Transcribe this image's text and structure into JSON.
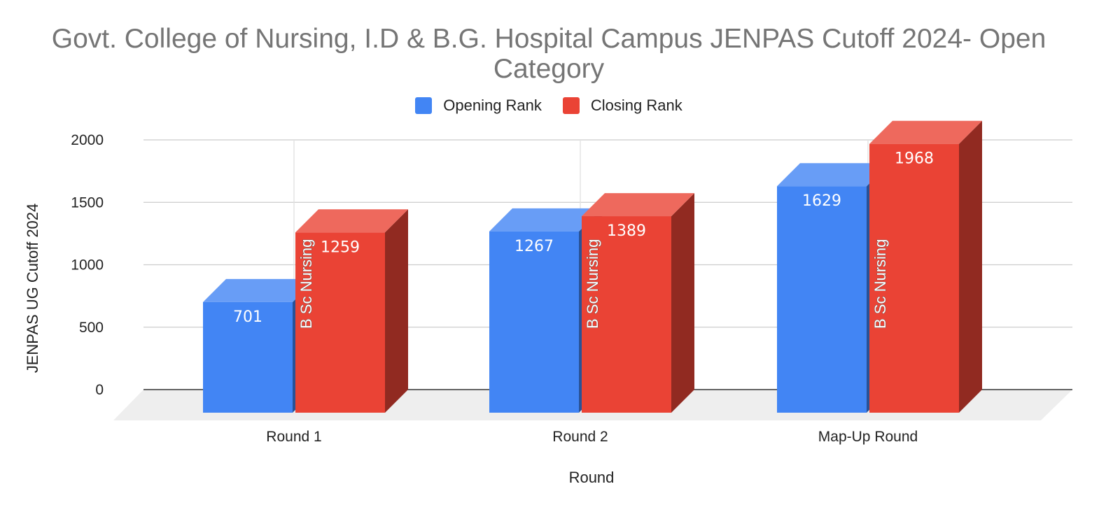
{
  "chart_data": {
    "type": "bar",
    "title_lines": [
      "Govt. College of Nursing, I.D & B.G. Hospital Campus JENPAS Cutoff 2024- Open",
      "Category"
    ],
    "xlabel": "Round",
    "ylabel": "JENPAS UG Cutoff 2024",
    "categories": [
      "Round 1",
      "Round 2",
      "Map-Up Round"
    ],
    "series": [
      {
        "name": "Opening Rank",
        "color": "#4285f4",
        "values": [
          701,
          1267,
          1629
        ]
      },
      {
        "name": "Closing Rank",
        "color": "#ea4335",
        "values": [
          1259,
          1389,
          1968
        ]
      }
    ],
    "bar_annotation": "B Sc Nursing",
    "ylim": [
      0,
      2000
    ],
    "yticks": [
      0,
      500,
      1000,
      1500,
      2000
    ],
    "grid": true,
    "legend_position": "top",
    "style": "3d"
  }
}
